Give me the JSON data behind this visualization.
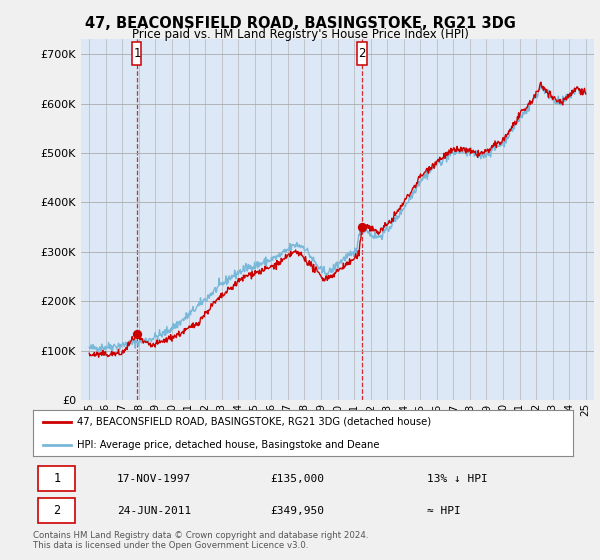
{
  "title": "47, BEACONSFIELD ROAD, BASINGSTOKE, RG21 3DG",
  "subtitle": "Price paid vs. HM Land Registry's House Price Index (HPI)",
  "ylabel_ticks": [
    "£0",
    "£100K",
    "£200K",
    "£300K",
    "£400K",
    "£500K",
    "£600K",
    "£700K"
  ],
  "ytick_vals": [
    0,
    100000,
    200000,
    300000,
    400000,
    500000,
    600000,
    700000
  ],
  "ylim": [
    0,
    730000
  ],
  "purchase1_year": 1997.88,
  "purchase1_price": 135000,
  "purchase1_label": "1",
  "purchase2_year": 2011.48,
  "purchase2_price": 349950,
  "purchase2_label": "2",
  "line_color_hpi": "#7ab8d9",
  "line_color_price": "#cc0000",
  "dot_color": "#cc0000",
  "legend_entry1": "47, BEACONSFIELD ROAD, BASINGSTOKE, RG21 3DG (detached house)",
  "legend_entry2": "HPI: Average price, detached house, Basingstoke and Deane",
  "table_rows": [
    [
      "1",
      "17-NOV-1997",
      "£135,000",
      "13% ↓ HPI"
    ],
    [
      "2",
      "24-JUN-2011",
      "£349,950",
      "≈ HPI"
    ]
  ],
  "footnote": "Contains HM Land Registry data © Crown copyright and database right 2024.\nThis data is licensed under the Open Government Licence v3.0.",
  "bg_color": "#f0f0f0",
  "plot_bg_color": "#dce8f5"
}
